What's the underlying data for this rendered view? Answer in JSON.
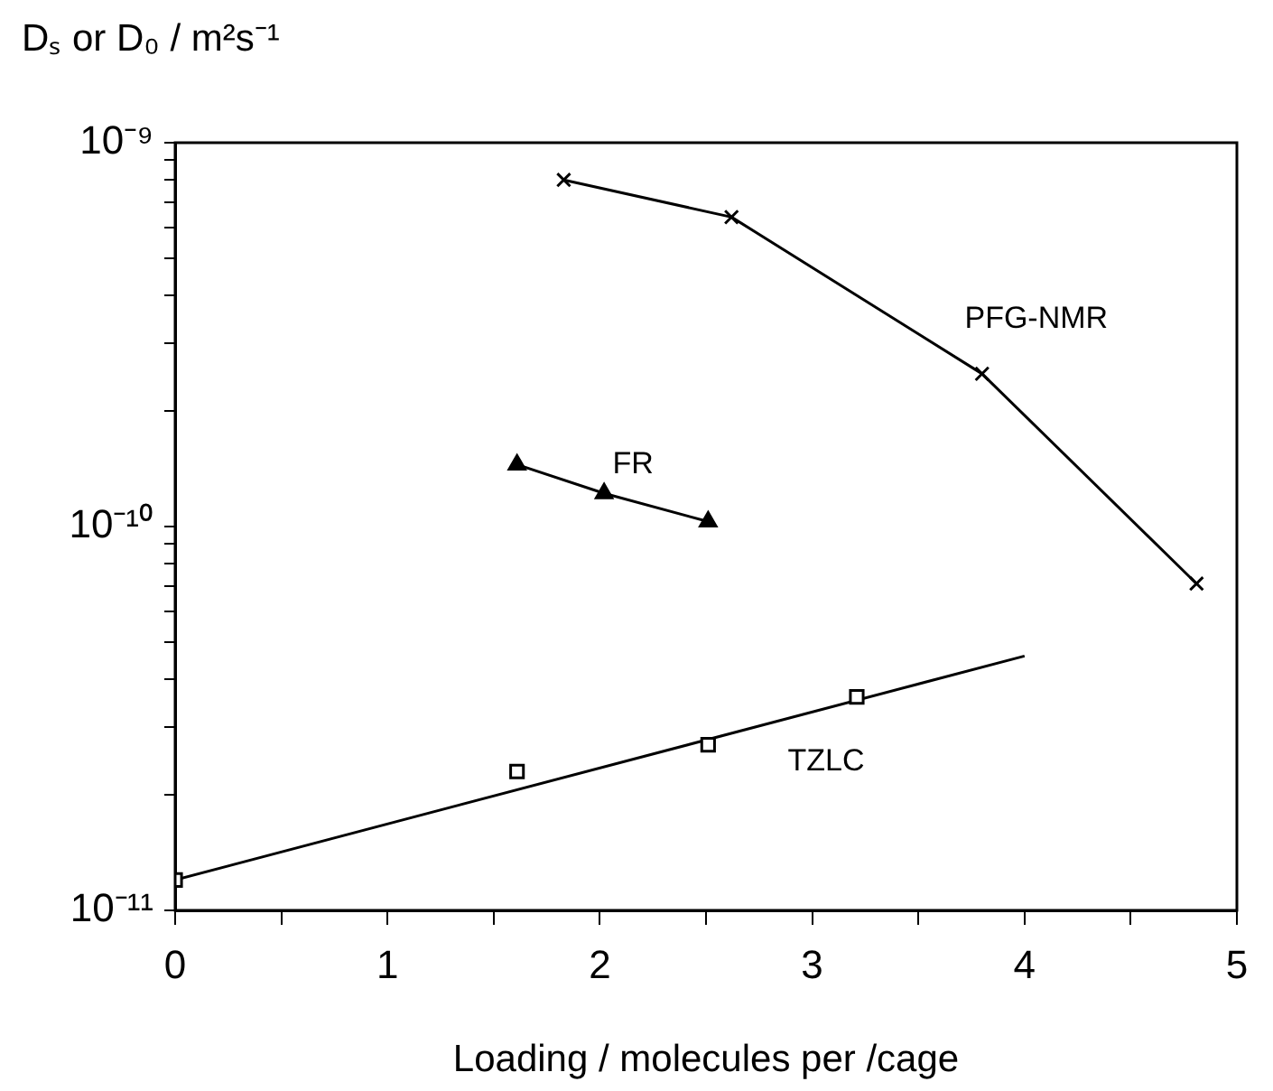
{
  "chart_data": {
    "type": "line",
    "ylabel": "Dₛ or D₀ / m²s⁻¹",
    "xlabel": "Loading / molecules per /cage",
    "log": "y",
    "grid": false,
    "legend": false,
    "xlim": [
      0,
      5
    ],
    "xticks": [
      0,
      {
        "value": 0.5,
        "label": null
      },
      1,
      {
        "value": 1.5,
        "label": null
      },
      2,
      {
        "value": 2.5,
        "label": null
      },
      3,
      {
        "value": 3.5,
        "label": null
      },
      4,
      {
        "value": 4.5,
        "label": null
      },
      5
    ],
    "ylim": [
      1e-11,
      1e-09
    ],
    "yticks": [
      {
        "value": 1e-11,
        "label": "10⁻¹¹"
      },
      {
        "value": 2e-11,
        "label": null
      },
      {
        "value": 3e-11,
        "label": null
      },
      {
        "value": 4e-11,
        "label": null
      },
      {
        "value": 5e-11,
        "label": null
      },
      {
        "value": 6e-11,
        "label": null
      },
      {
        "value": 7e-11,
        "label": null
      },
      {
        "value": 8e-11,
        "label": null
      },
      {
        "value": 9e-11,
        "label": null
      },
      {
        "value": 1e-10,
        "label": "10⁻¹⁰"
      },
      {
        "value": 2e-10,
        "label": null
      },
      {
        "value": 3e-10,
        "label": null
      },
      {
        "value": 4e-10,
        "label": null
      },
      {
        "value": 5e-10,
        "label": null
      },
      {
        "value": 6e-10,
        "label": null
      },
      {
        "value": 7e-10,
        "label": null
      },
      {
        "value": 8e-10,
        "label": null
      },
      {
        "value": 9e-10,
        "label": null
      },
      {
        "value": 1e-09,
        "label": "10⁻⁹"
      }
    ],
    "series": [
      {
        "name": "PFG-NMR",
        "marker": "cross",
        "color": "#000000",
        "x": [
          1.83,
          2.62,
          3.8,
          4.81
        ],
        "values": [
          8e-10,
          6.4e-10,
          2.5e-10,
          7.1e-11
        ]
      },
      {
        "name": "FR",
        "marker": "triangle",
        "color": "#000000",
        "x": [
          1.61,
          2.02,
          2.51
        ],
        "values": [
          1.45e-10,
          1.22e-10,
          1.03e-10
        ]
      },
      {
        "name": "TZLC",
        "type": "scatter",
        "marker": "square",
        "color": "#000000",
        "x": [
          0,
          1.61,
          2.51,
          3.21
        ],
        "values": [
          1.2e-11,
          2.3e-11,
          2.7e-11,
          3.6e-11
        ]
      },
      {
        "marker": "none",
        "color": "#000000",
        "x": [
          0,
          4
        ],
        "values": [
          1.2e-11,
          4.6e-11
        ]
      }
    ]
  }
}
